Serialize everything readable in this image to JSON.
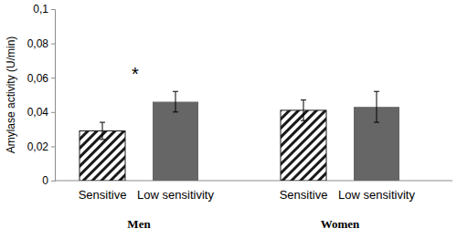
{
  "chart_data": {
    "type": "bar",
    "y_label": "Amylase activity (U/min)",
    "categories": [
      "Sensitive",
      "Low sensitivity",
      "Sensitive",
      "Low sensitivity"
    ],
    "group_labels": [
      "Men",
      "Women"
    ],
    "values": [
      0.029,
      0.046,
      0.041,
      0.043
    ],
    "errors": [
      0.005,
      0.006,
      0.006,
      0.009
    ],
    "colors": [
      "#1a1a1a",
      "#666666",
      "#1a1a1a",
      "#666666"
    ],
    "annotations": [
      "*"
    ],
    "ylim": [
      0,
      0.1
    ],
    "yticks": [
      0,
      {
        "value": 0.02,
        "label": "0,02"
      },
      {
        "value": 0.04,
        "label": "0,04"
      },
      {
        "value": 0.06,
        "label": "0,06"
      },
      {
        "value": 0.08,
        "label": "0,08"
      },
      {
        "value": 0.1,
        "label": "0,1"
      }
    ],
    "grid": false
  }
}
